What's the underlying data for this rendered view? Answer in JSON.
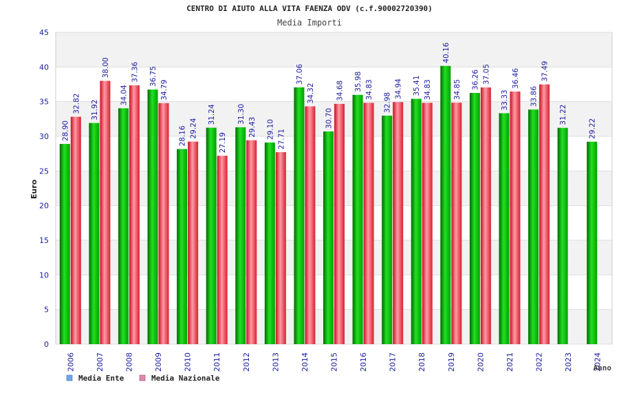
{
  "chart_data": {
    "type": "bar",
    "title": "CENTRO DI AIUTO ALLA VITA FAENZA ODV (c.f.90002720390)",
    "subtitle": "Media Importi",
    "xlabel": "Anno",
    "ylabel": "Euro",
    "ylim": [
      0,
      45
    ],
    "yticks": [
      0,
      5,
      10,
      15,
      20,
      25,
      30,
      35,
      40,
      45
    ],
    "grid": true,
    "legend_position": "bottom-left",
    "categories": [
      "2006",
      "2007",
      "2008",
      "2009",
      "2010",
      "2011",
      "2012",
      "2013",
      "2014",
      "2015",
      "2016",
      "2017",
      "2018",
      "2019",
      "2020",
      "2021",
      "2022",
      "2023",
      "2024"
    ],
    "series": [
      {
        "name": "Media Ente",
        "color": "#00b000",
        "legend_color": "#6fa8e8",
        "values": [
          28.9,
          31.92,
          34.04,
          36.75,
          28.16,
          31.24,
          31.3,
          29.1,
          37.06,
          30.7,
          35.98,
          32.98,
          35.41,
          40.16,
          36.26,
          33.33,
          33.86,
          31.22,
          29.22
        ],
        "labels": [
          "28.90",
          "31.92",
          "34.04",
          "36.75",
          "28.16",
          "31.24",
          "31.30",
          "29.10",
          "37.06",
          "30.70",
          "35.98",
          "32.98",
          "35.41",
          "40.16",
          "36.26",
          "33.33",
          "33.86",
          "31.22",
          "29.22"
        ]
      },
      {
        "name": "Media Nazionale",
        "color": "#e8303c",
        "legend_color": "#e08ab0",
        "values": [
          32.82,
          38.0,
          37.36,
          34.79,
          29.24,
          27.19,
          29.43,
          27.71,
          34.32,
          34.68,
          34.83,
          34.94,
          34.83,
          34.85,
          37.05,
          36.46,
          37.49,
          null,
          null
        ],
        "labels": [
          "32.82",
          "38.00",
          "37.36",
          "34.79",
          "29.24",
          "27.19",
          "29.43",
          "27.71",
          "34.32",
          "34.68",
          "34.83",
          "34.94",
          "34.83",
          "34.85",
          "37.05",
          "36.46",
          "37.49",
          "",
          ""
        ]
      }
    ]
  },
  "colors": {
    "axis_text": "#1a1aa0",
    "band_light": "#f2f2f2",
    "grid": "#dddddd",
    "frame": "#cccccc"
  }
}
